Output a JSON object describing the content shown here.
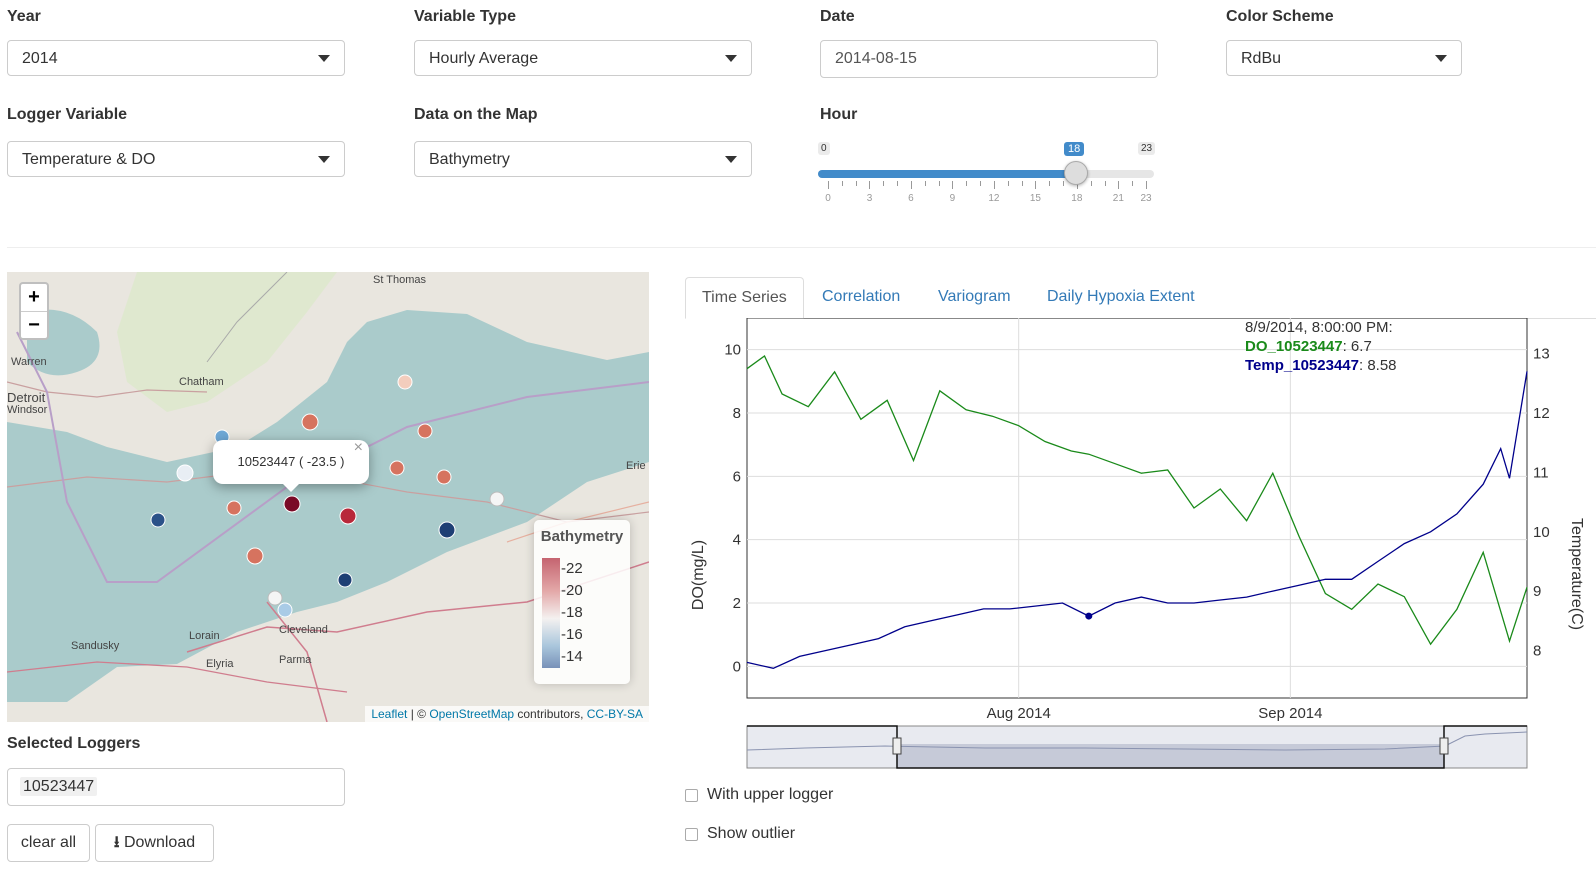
{
  "controls": {
    "year": {
      "label": "Year",
      "value": "2014"
    },
    "variable_type": {
      "label": "Variable Type",
      "value": "Hourly Average"
    },
    "date": {
      "label": "Date",
      "value": "2014-08-15"
    },
    "color_scheme": {
      "label": "Color Scheme",
      "value": "RdBu"
    },
    "logger_variable": {
      "label": "Logger Variable",
      "value": "Temperature & DO"
    },
    "map_data": {
      "label": "Data on the Map",
      "value": "Bathymetry"
    },
    "hour": {
      "label": "Hour",
      "min": "0",
      "max": "23",
      "value": "18",
      "value_fraction": 0.7826,
      "ticks": [
        "0",
        "3",
        "6",
        "9",
        "12",
        "15",
        "18",
        "21",
        "23"
      ]
    }
  },
  "map": {
    "zoom_in": "+",
    "zoom_out": "−",
    "place_labels": [
      "St Thomas",
      "Warren",
      "Chatham",
      "Detroit",
      "Windsor",
      "Erie",
      "Sandusky",
      "Lorain",
      "Elyria",
      "Cleveland",
      "Parma"
    ],
    "popup": {
      "text": "10523447 ( -23.5 )",
      "close": "×"
    },
    "legend": {
      "title": "Bathymetry",
      "ticks": [
        "-22",
        "-20",
        "-18",
        "-16",
        "-14"
      ]
    },
    "attribution": {
      "leaflet": "Leaflet",
      "sep": " | © ",
      "osm": "OpenStreetMap",
      "mid": " contributors, ",
      "license": "CC-BY-SA"
    }
  },
  "selected_loggers": {
    "label": "Selected Loggers",
    "value": "10523447"
  },
  "buttons": {
    "clear_all": "clear all",
    "download": "Download"
  },
  "tabs": [
    "Time Series",
    "Correlation",
    "Variogram",
    "Daily Hypoxia Extent"
  ],
  "checkboxes": {
    "upper_logger": "With upper logger",
    "show_outlier": "Show outlier"
  },
  "colors": {
    "do_series": "#1a8a1a",
    "temp_series": "#00008b",
    "accent": "#428bca"
  },
  "chart_data": {
    "type": "line",
    "ylabel": "DO(mg/L)",
    "y2label": "Temperature(C)",
    "ylim": [
      -1,
      11
    ],
    "y2lim": [
      7.2,
      13.6
    ],
    "yticks": [
      0,
      2,
      4,
      6,
      8,
      10
    ],
    "y2ticks": [
      8,
      9,
      10,
      11,
      12,
      13
    ],
    "xticks": [
      "Aug 2014",
      "Sep 2014"
    ],
    "xlim": [
      "2014-07-01",
      "2014-09-28"
    ],
    "legend": {
      "date": "8/9/2014, 8:00:00 PM:",
      "do_name": "DO_10523447",
      "do_value": ": 6.7",
      "temp_name": "Temp_10523447",
      "temp_value": ": 8.58"
    },
    "series": [
      {
        "name": "DO_10523447",
        "axis": "left",
        "x": [
          "2014-07-01",
          "2014-07-03",
          "2014-07-05",
          "2014-07-08",
          "2014-07-11",
          "2014-07-14",
          "2014-07-17",
          "2014-07-20",
          "2014-07-23",
          "2014-07-26",
          "2014-07-29",
          "2014-08-01",
          "2014-08-04",
          "2014-08-07",
          "2014-08-09",
          "2014-08-12",
          "2014-08-15",
          "2014-08-18",
          "2014-08-21",
          "2014-08-24",
          "2014-08-27",
          "2014-08-30",
          "2014-09-02",
          "2014-09-05",
          "2014-09-08",
          "2014-09-11",
          "2014-09-14",
          "2014-09-17",
          "2014-09-20",
          "2014-09-23",
          "2014-09-26",
          "2014-09-28"
        ],
        "y": [
          9.4,
          9.8,
          8.6,
          8.2,
          9.3,
          7.8,
          8.4,
          6.5,
          8.7,
          8.1,
          7.9,
          7.6,
          7.1,
          6.8,
          6.7,
          6.4,
          6.1,
          6.2,
          5.0,
          5.6,
          4.6,
          6.1,
          4.1,
          2.3,
          1.8,
          2.6,
          2.2,
          0.7,
          1.8,
          3.6,
          0.8,
          2.5
        ]
      },
      {
        "name": "Temp_10523447",
        "axis": "right",
        "x": [
          "2014-07-01",
          "2014-07-04",
          "2014-07-07",
          "2014-07-10",
          "2014-07-13",
          "2014-07-16",
          "2014-07-19",
          "2014-07-22",
          "2014-07-25",
          "2014-07-28",
          "2014-07-31",
          "2014-08-03",
          "2014-08-06",
          "2014-08-09",
          "2014-08-12",
          "2014-08-15",
          "2014-08-18",
          "2014-08-21",
          "2014-08-24",
          "2014-08-27",
          "2014-08-30",
          "2014-09-02",
          "2014-09-05",
          "2014-09-08",
          "2014-09-11",
          "2014-09-14",
          "2014-09-17",
          "2014-09-20",
          "2014-09-23",
          "2014-09-25",
          "2014-09-26",
          "2014-09-28"
        ],
        "y": [
          7.8,
          7.7,
          7.9,
          8.0,
          8.1,
          8.2,
          8.4,
          8.5,
          8.6,
          8.7,
          8.7,
          8.75,
          8.8,
          8.58,
          8.8,
          8.9,
          8.8,
          8.8,
          8.85,
          8.9,
          9.0,
          9.1,
          9.2,
          9.2,
          9.5,
          9.8,
          10.0,
          10.3,
          10.8,
          11.4,
          10.9,
          12.7
        ]
      }
    ]
  }
}
